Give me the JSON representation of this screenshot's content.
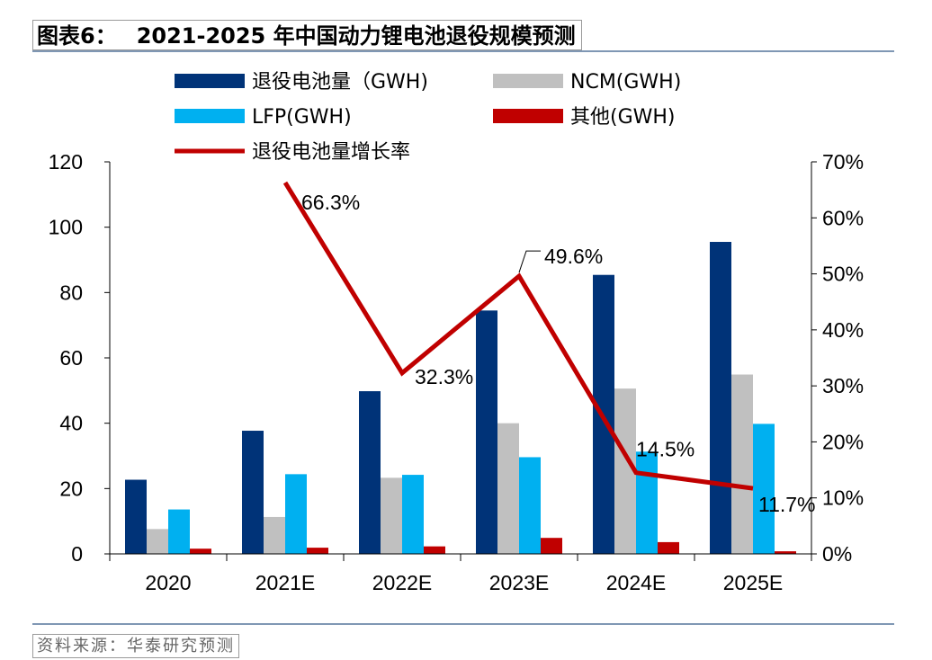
{
  "title": {
    "number": "图表6：",
    "text": "2021-2025 年中国动力锂电池退役规模预测"
  },
  "source": "资料来源：华泰研究预测",
  "chart_data": {
    "type": "bar",
    "categories": [
      "2020",
      "2021E",
      "2022E",
      "2023E",
      "2024E",
      "2025E"
    ],
    "series": [
      {
        "name": "退役电池量（GWH)",
        "color": "#003378",
        "values": [
          22.7,
          37.7,
          49.8,
          74.5,
          85.4,
          95.5
        ]
      },
      {
        "name": "NCM(GWH)",
        "color": "#c0c0c0",
        "values": [
          7.6,
          11.3,
          23.3,
          40.0,
          50.6,
          54.9
        ]
      },
      {
        "name": "LFP(GWH)",
        "color": "#00b0f0",
        "values": [
          13.6,
          24.4,
          24.2,
          29.6,
          31.3,
          39.8
        ]
      },
      {
        "name": "其他(GWH)",
        "color": "#c00000",
        "values": [
          1.6,
          1.9,
          2.3,
          4.9,
          3.6,
          0.8
        ]
      }
    ],
    "line_series": {
      "name": "退役电池量增长率",
      "color": "#c00000",
      "axis": "right",
      "categories": [
        "2021E",
        "2022E",
        "2023E",
        "2024E",
        "2025E"
      ],
      "values": [
        66.3,
        32.3,
        49.6,
        14.5,
        11.7
      ],
      "labels": [
        "66.3%",
        "32.3%",
        "49.6%",
        "14.5%",
        "11.7%"
      ]
    },
    "y_left": {
      "min": 0,
      "max": 120,
      "step": 20,
      "ticks": [
        "0",
        "20",
        "40",
        "60",
        "80",
        "100",
        "120"
      ]
    },
    "y_right": {
      "min": 0,
      "max": 70,
      "step": 10,
      "ticks": [
        "0%",
        "10%",
        "20%",
        "30%",
        "40%",
        "50%",
        "60%",
        "70%"
      ]
    },
    "legend_position": "top"
  }
}
